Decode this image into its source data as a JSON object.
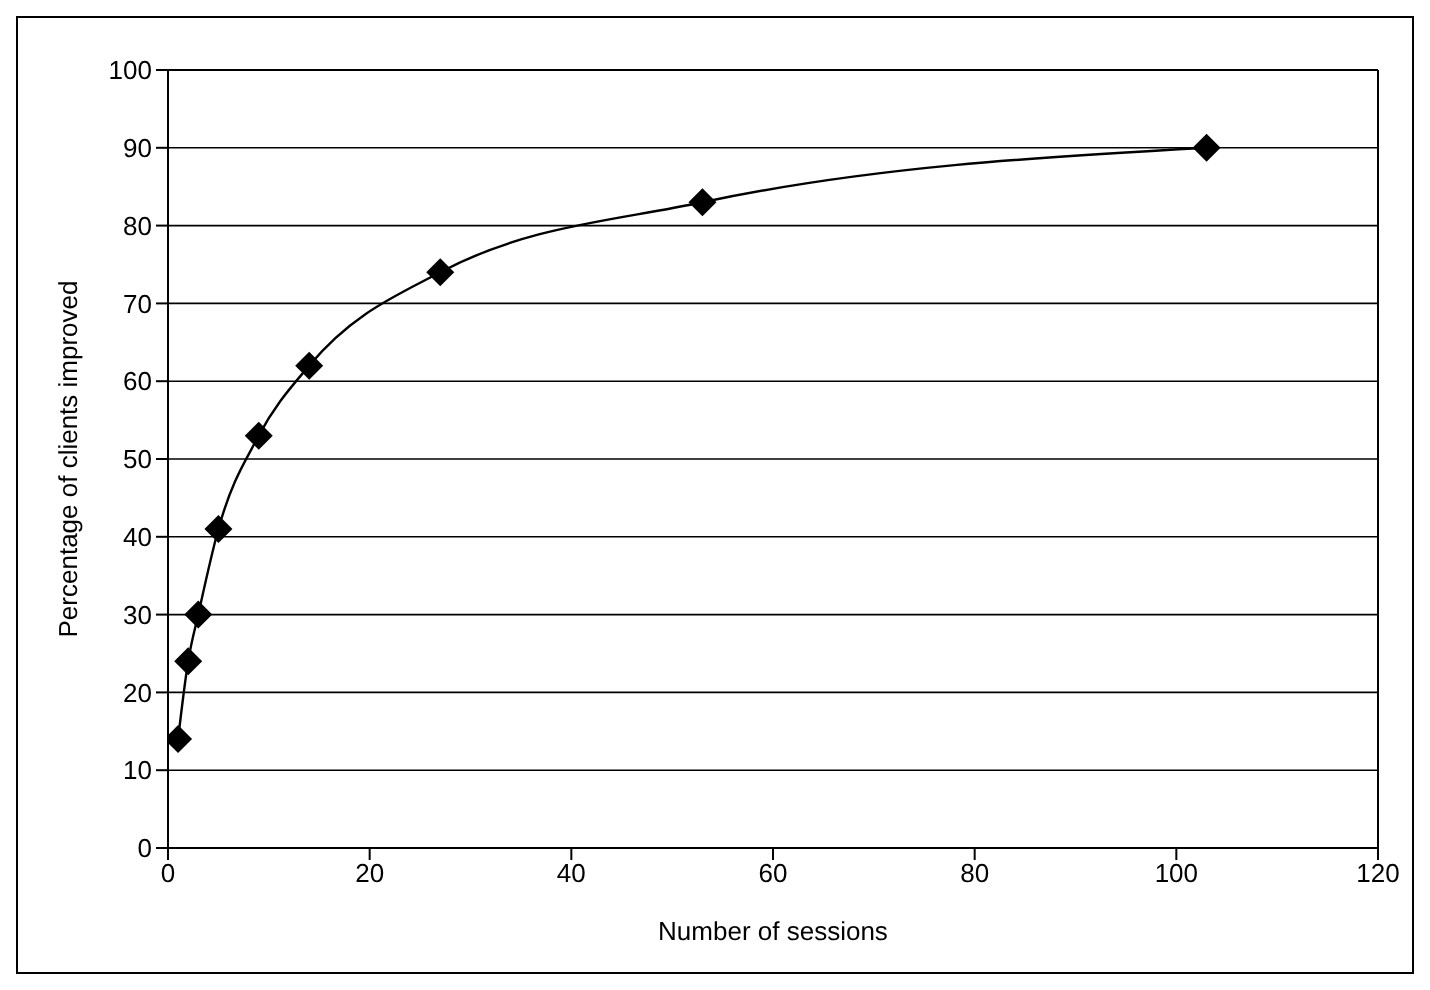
{
  "chart_data": {
    "type": "line",
    "xlabel": "Number of sessions",
    "ylabel": "Percentage of clients improved",
    "x": [
      1,
      2,
      3,
      5,
      9,
      14,
      27,
      53,
      103
    ],
    "series": [
      {
        "color": "#000000",
        "values": [
          14,
          24,
          30,
          41,
          53,
          62,
          74,
          83,
          90
        ]
      }
    ],
    "xlim": [
      0,
      120
    ],
    "xticks": [
      0,
      20,
      40,
      60,
      80,
      100,
      120
    ],
    "ylim": [
      0,
      100
    ],
    "yticks": [
      0,
      10,
      20,
      30,
      40,
      50,
      60,
      70,
      80,
      90,
      100
    ],
    "grid": "y",
    "marker": "diamond",
    "line_style": "solid",
    "legend": false
  }
}
